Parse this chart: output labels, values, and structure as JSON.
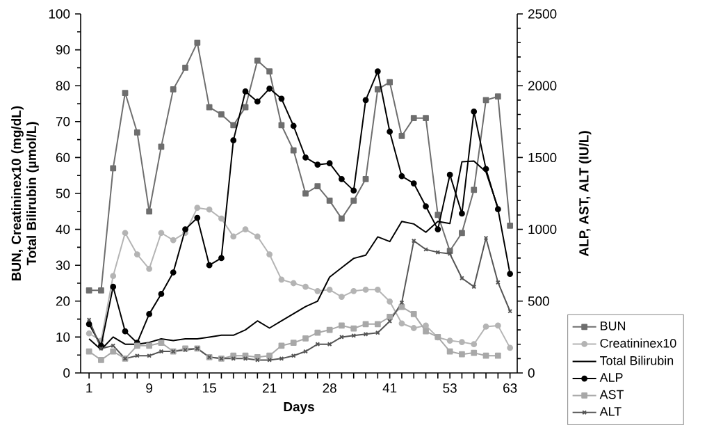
{
  "chart_data": {
    "type": "line",
    "xlabel": "Days",
    "ylabel": "BUN, Creatininex10 (mg/dL) Total Bilirubin (µmol/L)",
    "y2label": "ALP, AST, ALT (IU/L)",
    "categories": [
      "1",
      null,
      null,
      null,
      null,
      "9",
      null,
      null,
      null,
      null,
      "15",
      null,
      null,
      null,
      null,
      "21",
      null,
      null,
      null,
      null,
      "28",
      null,
      null,
      null,
      null,
      "41",
      null,
      null,
      null,
      null,
      "53",
      null,
      null,
      null,
      null,
      "63"
    ],
    "ylim": [
      0,
      100
    ],
    "yticks": [
      0,
      10,
      20,
      30,
      40,
      50,
      60,
      70,
      80,
      90,
      100
    ],
    "y2lim": [
      0,
      2500
    ],
    "y2ticks": [
      0,
      500,
      1000,
      1500,
      2000,
      2500
    ],
    "legend": "bottom right",
    "grid": false,
    "line_style": "solid",
    "series": [
      {
        "name": "BUN",
        "color": "#6e6e6e",
        "marker": "square",
        "values": [
          23,
          23,
          57,
          78,
          67,
          45,
          63,
          79,
          85,
          92,
          74,
          72,
          69,
          74,
          87,
          84,
          69,
          62,
          50,
          52,
          48,
          43,
          48,
          54,
          79,
          81,
          66,
          71,
          71,
          44,
          34,
          39,
          51,
          76,
          77,
          41
        ]
      },
      {
        "name": "Creatininex10",
        "color": "#b4b4b4",
        "marker": "circle",
        "values": [
          11,
          9,
          27,
          39,
          33,
          29,
          39,
          37,
          39,
          46,
          45.5,
          43,
          38,
          40,
          38,
          33,
          26,
          25,
          24,
          22.8,
          23.2,
          21.2,
          22.8,
          23.2,
          23.2,
          19.9,
          13.8,
          12.5,
          13.2,
          9.9,
          9,
          8.6,
          8,
          12.9,
          13.2,
          7
        ]
      },
      {
        "name": "Total Bilirubin",
        "color": "#000000",
        "marker": "none",
        "values": [
          9.5,
          6.5,
          10,
          8,
          8,
          8.5,
          9.5,
          9,
          9.5,
          9.5,
          10,
          10.5,
          10.5,
          12,
          14.5,
          12.5,
          14.5,
          16.5,
          18.5,
          20,
          26.7,
          29.3,
          31.9,
          32.8,
          37.9,
          36.6,
          42.2,
          41.5,
          39.2,
          42.2,
          41.6,
          58.8,
          59,
          56,
          46,
          null
        ]
      },
      {
        "name": "ALP",
        "color": "#000000",
        "marker": "circle",
        "axis": "y2",
        "values": [
          340,
          190,
          600,
          290,
          210,
          410,
          550,
          700,
          1000,
          1080,
          750,
          800,
          1620,
          1960,
          1890,
          1980,
          1910,
          1720,
          1500,
          1450,
          1460,
          1350,
          1270,
          1900,
          2100,
          1680,
          1370,
          1320,
          1160,
          1000,
          1380,
          1110,
          1820,
          1420,
          1140,
          690
        ]
      },
      {
        "name": "AST",
        "color": "#a8a8a8",
        "marker": "square",
        "axis": "y2",
        "values": [
          150,
          90,
          150,
          100,
          190,
          190,
          210,
          150,
          170,
          170,
          110,
          100,
          120,
          120,
          110,
          120,
          190,
          210,
          240,
          280,
          300,
          330,
          310,
          340,
          340,
          390,
          460,
          410,
          290,
          250,
          150,
          130,
          140,
          120,
          120,
          null
        ]
      },
      {
        "name": "ALT",
        "color": "#555555",
        "marker": "cross",
        "axis": "y2",
        "values": [
          370,
          170,
          190,
          100,
          120,
          120,
          150,
          150,
          160,
          170,
          110,
          100,
          100,
          100,
          90,
          90,
          100,
          120,
          150,
          200,
          200,
          250,
          260,
          270,
          280,
          360,
          490,
          920,
          860,
          840,
          830,
          660,
          600,
          940,
          630,
          430
        ]
      }
    ]
  }
}
